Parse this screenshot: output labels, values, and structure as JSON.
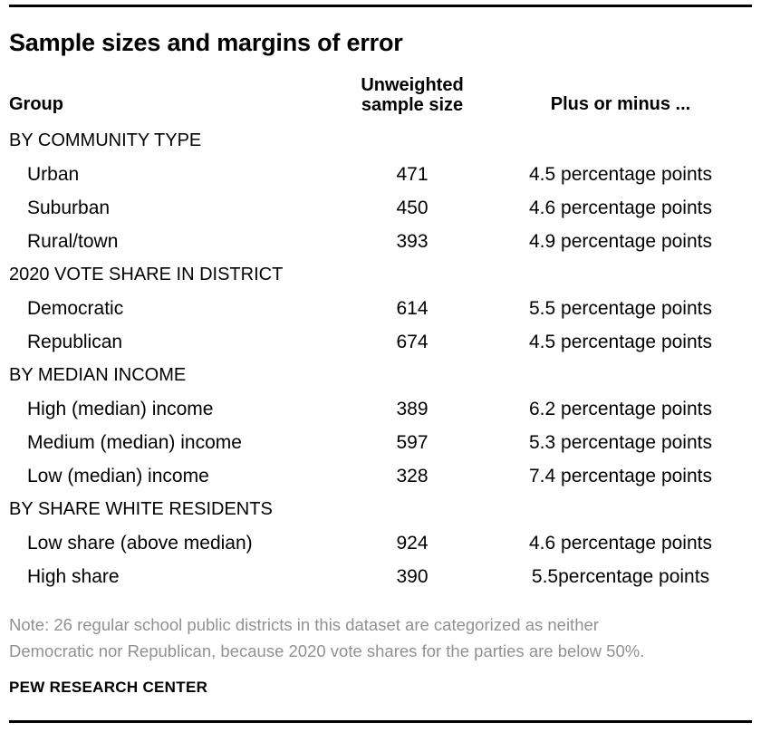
{
  "title": "Sample sizes and margins of error",
  "header": {
    "group": "Group",
    "sample_line1": "Unweighted",
    "sample_line2": "sample size",
    "moe": "Plus or minus ..."
  },
  "rows": [
    {
      "type": "section",
      "label": "BY COMMUNITY TYPE",
      "sample": "",
      "moe": ""
    },
    {
      "type": "data",
      "label": "Urban",
      "sample": "471",
      "moe": "4.5 percentage points"
    },
    {
      "type": "data",
      "label": "Suburban",
      "sample": "450",
      "moe": "4.6 percentage points"
    },
    {
      "type": "data",
      "label": "Rural/town",
      "sample": "393",
      "moe": "4.9 percentage points"
    },
    {
      "type": "section",
      "label": "2020 VOTE SHARE IN DISTRICT",
      "sample": "",
      "moe": ""
    },
    {
      "type": "data",
      "label": "Democratic",
      "sample": "614",
      "moe": "5.5 percentage points"
    },
    {
      "type": "data",
      "label": "Republican",
      "sample": "674",
      "moe": "4.5 percentage points"
    },
    {
      "type": "section",
      "label": "BY MEDIAN INCOME",
      "sample": "",
      "moe": ""
    },
    {
      "type": "data",
      "label": "High (median) income",
      "sample": "389",
      "moe": "6.2 percentage points"
    },
    {
      "type": "data",
      "label": "Medium (median) income",
      "sample": "597",
      "moe": "5.3 percentage points"
    },
    {
      "type": "data",
      "label": "Low (median) income",
      "sample": "328",
      "moe": "7.4 percentage points"
    },
    {
      "type": "section",
      "label": "BY SHARE WHITE RESIDENTS",
      "sample": "",
      "moe": ""
    },
    {
      "type": "data",
      "label": "Low share (above median)",
      "sample": "924",
      "moe": "4.6 percentage points"
    },
    {
      "type": "data",
      "label": "High share",
      "sample": "390",
      "moe": "5.5percentage points"
    }
  ],
  "note": {
    "line1": "Note: 26 regular school public districts in this dataset are categorized as neither",
    "line2": "Democratic nor Republican, because 2020 vote shares for the parties are below 50%."
  },
  "source": "PEW RESEARCH CENTER",
  "colors": {
    "text": "#000000",
    "note_gray": "#919191",
    "rule": "#000000",
    "background": "#ffffff"
  },
  "chart_data": {
    "type": "table",
    "title": "Sample sizes and margins of error",
    "columns": [
      "Group",
      "Unweighted sample size",
      "Plus or minus ..."
    ],
    "sections": [
      {
        "header": "BY COMMUNITY TYPE",
        "rows": [
          {
            "group": "Urban",
            "unweighted_sample_size": 471,
            "margin_of_error_pct_points": 4.5
          },
          {
            "group": "Suburban",
            "unweighted_sample_size": 450,
            "margin_of_error_pct_points": 4.6
          },
          {
            "group": "Rural/town",
            "unweighted_sample_size": 393,
            "margin_of_error_pct_points": 4.9
          }
        ]
      },
      {
        "header": "2020 VOTE SHARE IN DISTRICT",
        "rows": [
          {
            "group": "Democratic",
            "unweighted_sample_size": 614,
            "margin_of_error_pct_points": 5.5
          },
          {
            "group": "Republican",
            "unweighted_sample_size": 674,
            "margin_of_error_pct_points": 4.5
          }
        ]
      },
      {
        "header": "BY MEDIAN INCOME",
        "rows": [
          {
            "group": "High (median) income",
            "unweighted_sample_size": 389,
            "margin_of_error_pct_points": 6.2
          },
          {
            "group": "Medium (median) income",
            "unweighted_sample_size": 597,
            "margin_of_error_pct_points": 5.3
          },
          {
            "group": "Low (median) income",
            "unweighted_sample_size": 328,
            "margin_of_error_pct_points": 7.4
          }
        ]
      },
      {
        "header": "BY SHARE WHITE RESIDENTS",
        "rows": [
          {
            "group": "Low share (above median)",
            "unweighted_sample_size": 924,
            "margin_of_error_pct_points": 4.6
          },
          {
            "group": "High share",
            "unweighted_sample_size": 390,
            "margin_of_error_pct_points": 5.5
          }
        ]
      }
    ],
    "note": "Note: 26 regular school public districts in this dataset are categorized as neither Democratic nor Republican, because 2020 vote shares for the parties are below 50%.",
    "source": "PEW RESEARCH CENTER"
  }
}
